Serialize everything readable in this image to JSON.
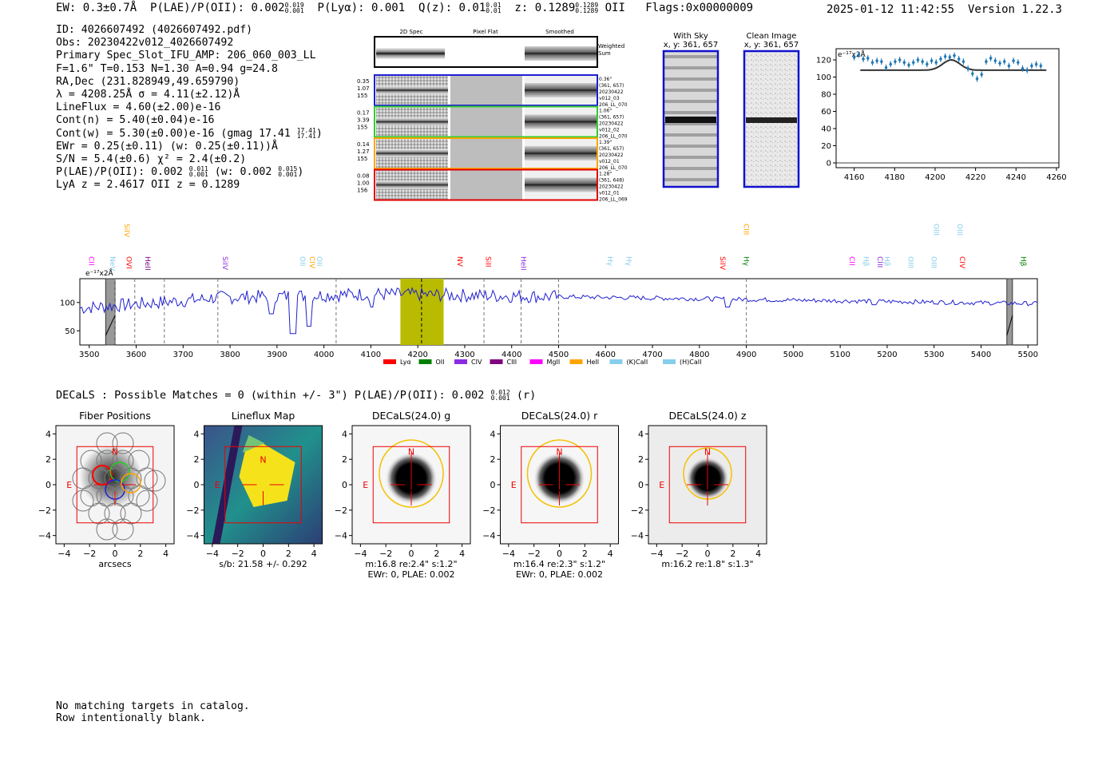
{
  "header": {
    "ew": "EW: 0.3±0.7Å",
    "plae_label": "P(LAE)/P(OII): 0.002",
    "plae_hi": "0.019",
    "plae_lo": "0.001",
    "plya": "P(Lyα): 0.001",
    "qz_label": "Q(z): 0.01",
    "qz_hi": "0.01",
    "qz_lo": "0.01",
    "z_label": "z: 0.1289",
    "z_hi": "0.1289",
    "z_lo": "0.1289",
    "z_line": "OII",
    "flags": "Flags:0x00000009",
    "timestamp": "2025-01-12 11:42:55",
    "version": "Version 1.22.3"
  },
  "info": {
    "id": "ID: 4026607492 (4026607492.pdf)",
    "obs": "Obs: 20230422v012_4026607492",
    "primary": "Primary Spec_Slot_IFU_AMP: 206_060_003_LL",
    "fwhm": "F=1.6\"  T=0.153  N=1.30  A=0.94  g=24.8",
    "radec": "RA,Dec (231.828949,49.659790)",
    "lambda": "λ = 4208.25Å  σ = 4.11(±2.12)Å",
    "lineflux": "LineFlux = 4.60(±2.00)e-16",
    "contn": "Cont(n) = 5.40(±0.04)e-16",
    "contw_label": "Cont(w) = 5.30(±0.00)e-16 (gmag 17.41",
    "contw_hi": "17.41",
    "contw_lo": "17.41",
    "ewr": "EWr = 0.25(±0.11) (w: 0.25(±0.11))Å",
    "sn": "S/N = 5.4(±0.6)  χ² = 2.4(±0.2)",
    "plae_label": "P(LAE)/P(OII): 0.002",
    "plae_hi": "0.011",
    "plae_lo": "0.001",
    "plae_w_label": "(w: 0.002",
    "plae_w_hi": "0.015",
    "plae_w_lo": "0.001",
    "lyaz": "LyA z = 2.4617   OII z = 0.1289"
  },
  "cutouts": {
    "col_2d": "2D Spec",
    "col_flat": "Pixel Flat",
    "col_smooth": "Smoothed",
    "weighted": "Weighted",
    "weighted2": "Sum",
    "rows": [
      {
        "w1": "0.35",
        "w2": "1.07",
        "w3": "155",
        "d1": "0.36\"",
        "d2": "(361, 657)",
        "d3": "20230422",
        "d4": "v012_03",
        "d5": "206_LL_070",
        "color": "#1f1fd0"
      },
      {
        "w1": "0.17",
        "w2": "3.39",
        "w3": "155",
        "d1": "1.06\"",
        "d2": "(361, 657)",
        "d3": "20230422",
        "d4": "v012_02",
        "d5": "206_LL_070",
        "color": "#32cd32"
      },
      {
        "w1": "0.14",
        "w2": "1.27",
        "w3": "155",
        "d1": "1.39\"",
        "d2": "(361, 657)",
        "d3": "20230422",
        "d4": "v012_01",
        "d5": "206_LL_070",
        "color": "#ffa500"
      },
      {
        "w1": "0.08",
        "w2": "1.00",
        "w3": "156",
        "d1": "1.28\"",
        "d2": "(361, 648)",
        "d3": "20230422",
        "d4": "v012_01",
        "d5": "206_LL_069",
        "color": "#e00000"
      }
    ]
  },
  "sky": {
    "with_sky": "With Sky",
    "with_sky_xy": "x, y: 361, 657",
    "clean": "Clean Image",
    "clean_xy": "x, y: 361, 657"
  },
  "zoom_plot": {
    "ylabel": "e⁻¹⁷x2Å",
    "yticks": [
      "120",
      "100",
      "80",
      "60",
      "40",
      "20",
      "0"
    ],
    "xticks": [
      "4160",
      "4180",
      "4200",
      "4220",
      "4240",
      "4260"
    ]
  },
  "full_spec": {
    "ylabel": "e⁻¹⁷x2Å",
    "yticks": [
      "100",
      "50"
    ],
    "xticks": [
      "3500",
      "3600",
      "3700",
      "3800",
      "3900",
      "4000",
      "4100",
      "4200",
      "4300",
      "4400",
      "4500",
      "4600",
      "4700",
      "4800",
      "4900",
      "5000",
      "5100",
      "5200",
      "5300",
      "5400",
      "5500"
    ],
    "lines": [
      {
        "label": "CII",
        "color": "#ff00ff",
        "x": 3505,
        "row": 1
      },
      {
        "label": "NeV",
        "color": "#87ceeb",
        "x": 3550,
        "row": 1
      },
      {
        "label": "SiIV",
        "color": "#ffa500",
        "x": 3580,
        "row": 0
      },
      {
        "label": "OVI",
        "color": "#ff0000",
        "x": 3585,
        "row": 1
      },
      {
        "label": "HeII",
        "color": "#800080",
        "x": 3625,
        "row": 1
      },
      {
        "label": "SiIV",
        "color": "#8a2be2",
        "x": 3790,
        "row": 1
      },
      {
        "label": "OII",
        "color": "#87ceeb",
        "x": 3955,
        "row": 1
      },
      {
        "label": "CIV",
        "color": "#ffa500",
        "x": 3975,
        "row": 1
      },
      {
        "label": "OII",
        "color": "#87ceeb",
        "x": 3990,
        "row": 1
      },
      {
        "label": "NV",
        "color": "#ff0000",
        "x": 4290,
        "row": 1
      },
      {
        "label": "SiII",
        "color": "#ff0000",
        "x": 4350,
        "row": 1
      },
      {
        "label": "HeII",
        "color": "#8a2be2",
        "x": 4425,
        "row": 1
      },
      {
        "label": "Hγ",
        "color": "#87ceeb",
        "x": 4610,
        "row": 1
      },
      {
        "label": "Hγ",
        "color": "#87ceeb",
        "x": 4650,
        "row": 1
      },
      {
        "label": "SiIV",
        "color": "#ff0000",
        "x": 4850,
        "row": 1
      },
      {
        "label": "CIII",
        "color": "#ffa500",
        "x": 4900,
        "row": 0
      },
      {
        "label": "Hγ",
        "color": "#008000",
        "x": 4900,
        "row": 1
      },
      {
        "label": "CII",
        "color": "#ff00ff",
        "x": 5125,
        "row": 1
      },
      {
        "label": "Hβ",
        "color": "#87ceeb",
        "x": 5155,
        "row": 1
      },
      {
        "label": "CIII",
        "color": "#8a2be2",
        "x": 5185,
        "row": 1
      },
      {
        "label": "Hβ",
        "color": "#87ceeb",
        "x": 5200,
        "row": 1
      },
      {
        "label": "OIII",
        "color": "#87ceeb",
        "x": 5250,
        "row": 1
      },
      {
        "label": "OIII",
        "color": "#87ceeb",
        "x": 5305,
        "row": 0
      },
      {
        "label": "OIII",
        "color": "#87ceeb",
        "x": 5355,
        "row": 0
      },
      {
        "label": "OIII",
        "color": "#87ceeb",
        "x": 5300,
        "row": 1
      },
      {
        "label": "CIV",
        "color": "#ff0000",
        "x": 5360,
        "row": 1
      },
      {
        "label": "Hβ",
        "color": "#008000",
        "x": 5490,
        "row": 1
      }
    ],
    "legend": [
      {
        "label": "Lyα",
        "color": "#ff0000"
      },
      {
        "label": "OII",
        "color": "#008000"
      },
      {
        "label": "CIV",
        "color": "#8a2be2"
      },
      {
        "label": "CIII",
        "color": "#800080"
      },
      {
        "label": "MgII",
        "color": "#ff00ff"
      },
      {
        "label": "HeII",
        "color": "#ffa500"
      },
      {
        "label": "(K)CaII",
        "color": "#87ceeb"
      },
      {
        "label": "(H)CaII",
        "color": "#87ceeb"
      }
    ]
  },
  "decals": {
    "title_label": "DECaLS : Possible Matches = 0 (within +/- 3\")  P(LAE)/P(OII): 0.002",
    "title_hi": "0.012",
    "title_lo": "0.001",
    "title_band": "(r)",
    "n_label": "N",
    "e_label": "E",
    "ticks": [
      "4",
      "2",
      "0",
      "−2",
      "−4"
    ],
    "xticks": [
      "−4",
      "−2",
      "0",
      "2",
      "4"
    ],
    "panels": [
      {
        "title": "Fiber Positions",
        "cap1": "arcsecs",
        "cap2": ""
      },
      {
        "title": "Lineflux Map",
        "cap1": "s/b: 21.58 +/- 0.292",
        "cap2": ""
      },
      {
        "title": "DECaLS(24.0) g",
        "cap1": "m:16.8   re:2.4\"   s:1.2\"",
        "cap2": "EWr: 0, PLAE: 0.002"
      },
      {
        "title": "DECaLS(24.0) r",
        "cap1": "m:16.4   re:2.3\"   s:1.2\"",
        "cap2": "EWr: 0, PLAE: 0.002"
      },
      {
        "title": "DECaLS(24.0) z",
        "cap1": "m:16.2   re:1.8\"   s:1.3\"",
        "cap2": ""
      }
    ]
  },
  "footer": {
    "line1": "No matching targets in catalog.",
    "line2": "Row intentionally blank."
  }
}
